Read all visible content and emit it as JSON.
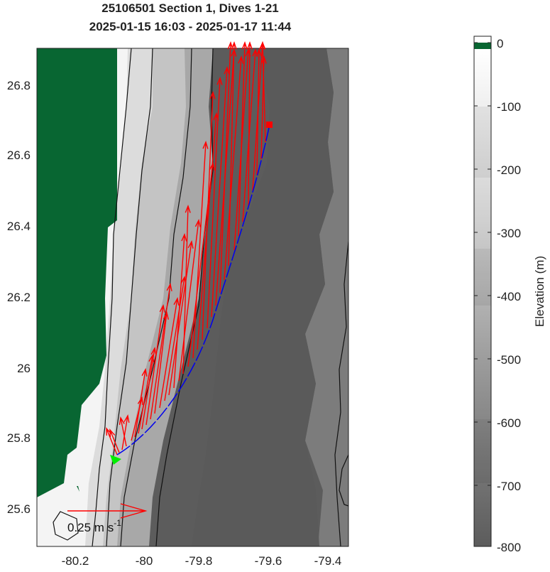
{
  "title": {
    "line1": "25106501 Section 1, Dives 1-21",
    "line2": "2025-01-15 16:03 - 2025-01-17 11:44"
  },
  "map": {
    "x_ticks": [
      "-80.2",
      "-80",
      "-79.8",
      "-79.6",
      "-79.4"
    ],
    "y_ticks": [
      "26.8",
      "26.6",
      "26.4",
      "26.2",
      "26",
      "25.8",
      "25.6"
    ],
    "lon_range": [
      -80.32,
      -79.32
    ],
    "lat_range": [
      25.5,
      26.93
    ],
    "land_color": "#086632",
    "track_color": "#0000ee",
    "current_color": "#ff0000",
    "start_marker": {
      "symbol": "green-triangle",
      "color": "#00ee00",
      "lon": -80.06,
      "lat": 25.74
    },
    "end_marker": {
      "symbol": "red-square",
      "color": "#ff0000",
      "lon": -79.57,
      "lat": 26.69
    },
    "scale_arrow": {
      "label": "0.25 m s",
      "superscript": "-1"
    }
  },
  "colorbar": {
    "label": "Elevation (m)",
    "ticks": [
      "0",
      "-100",
      "-200",
      "-300",
      "-400",
      "-500",
      "-600",
      "-700",
      "-800"
    ],
    "range": [
      -800,
      0
    ]
  }
}
